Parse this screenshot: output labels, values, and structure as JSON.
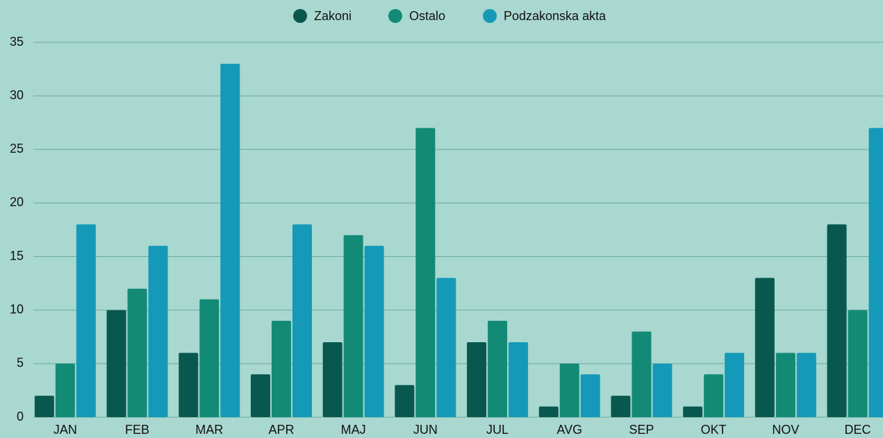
{
  "chart_data": {
    "type": "bar",
    "categories": [
      "JAN",
      "FEB",
      "MAR",
      "APR",
      "MAJ",
      "JUN",
      "JUL",
      "AVG",
      "SEP",
      "OKT",
      "NOV",
      "DEC"
    ],
    "series": [
      {
        "name": "Zakoni",
        "color": "#08584f",
        "values": [
          2,
          10,
          6,
          4,
          7,
          3,
          7,
          1,
          2,
          1,
          13,
          18
        ]
      },
      {
        "name": "Ostalo",
        "color": "#138a76",
        "values": [
          5,
          12,
          11,
          9,
          17,
          27,
          9,
          5,
          8,
          4,
          6,
          10
        ]
      },
      {
        "name": "Podzakonska akta",
        "color": "#149ab8",
        "values": [
          18,
          16,
          33,
          18,
          16,
          13,
          7,
          4,
          5,
          6,
          6,
          27
        ]
      }
    ],
    "ylim": [
      0,
      35
    ],
    "yticks": [
      0,
      5,
      10,
      15,
      20,
      25,
      30,
      35
    ],
    "grid": true,
    "legend": "top"
  }
}
